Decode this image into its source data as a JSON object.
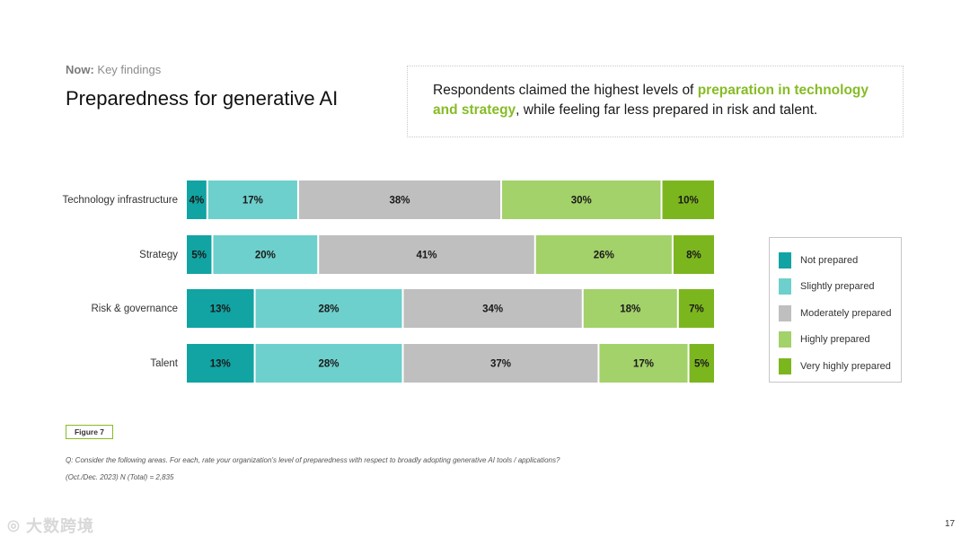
{
  "header": {
    "kicker_bold": "Now:",
    "kicker_text": "Key findings",
    "title": "Preparedness for generative AI"
  },
  "callout": {
    "pre": "Respondents claimed the highest levels of ",
    "highlight": "preparation in technology and strategy",
    "post": ", while feeling far less prepared in risk and talent."
  },
  "colors": {
    "not_prepared": "#12a3a3",
    "slightly_prepared": "#6dd0cc",
    "moderately_prepared": "#bfbfbf",
    "highly_prepared": "#a3d16a",
    "very_highly_prepared": "#7cb61f",
    "accent": "#86bc25"
  },
  "chart_data": {
    "type": "bar",
    "orientation": "horizontal",
    "stacked": true,
    "categories": [
      "Technology infrastructure",
      "Strategy",
      "Risk & governance",
      "Talent"
    ],
    "series": [
      {
        "name": "Not prepared",
        "values": [
          4,
          5,
          13,
          13
        ]
      },
      {
        "name": "Slightly prepared",
        "values": [
          17,
          20,
          28,
          28
        ]
      },
      {
        "name": "Moderately prepared",
        "values": [
          38,
          41,
          34,
          37
        ]
      },
      {
        "name": "Highly prepared",
        "values": [
          30,
          26,
          18,
          17
        ]
      },
      {
        "name": "Very highly prepared",
        "values": [
          10,
          8,
          7,
          5
        ]
      }
    ],
    "value_suffix": "%",
    "xlim": [
      0,
      100
    ],
    "legend_position": "right",
    "grid": false
  },
  "legend": {
    "items": [
      {
        "label": "Not prepared",
        "color_key": "not_prepared"
      },
      {
        "label": "Slightly prepared",
        "color_key": "slightly_prepared"
      },
      {
        "label": "Moderately prepared",
        "color_key": "moderately_prepared"
      },
      {
        "label": "Highly prepared",
        "color_key": "highly_prepared"
      },
      {
        "label": "Very highly prepared",
        "color_key": "very_highly_prepared"
      }
    ]
  },
  "footer": {
    "figure_label": "Figure 7",
    "question": "Q: Consider the following areas. For each, rate your organization's level of preparedness with respect to broadly adopting generative AI tools / applications?",
    "sample": "(Oct./Dec. 2023) N (Total) = 2,835",
    "page_number": "17",
    "watermark": "大数跨境"
  }
}
